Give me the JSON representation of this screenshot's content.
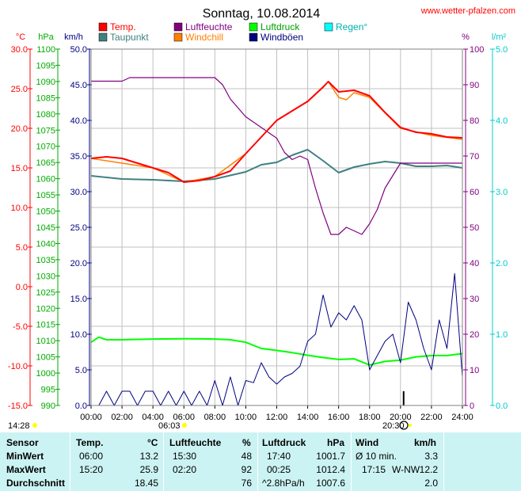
{
  "site": "www.wetter-pfalzen.com",
  "chart_data": {
    "type": "line",
    "title": "Sonntag, 10.08.2014",
    "x_ticks": [
      "00:00",
      "02:00",
      "04:00",
      "06:00",
      "08:00",
      "10:00",
      "12:00",
      "14:00",
      "16:00",
      "18:00",
      "20:00",
      "22:00",
      "24:00"
    ],
    "xlim": [
      0,
      24
    ],
    "grid": true,
    "legend": {
      "placement": "top",
      "items": [
        {
          "name": "Temp.",
          "color": "#ff0000"
        },
        {
          "name": "Luftfeuchte",
          "color": "#800080"
        },
        {
          "name": "Luftdruck",
          "color": "#00ff00"
        },
        {
          "name": "Regen°",
          "color": "#00ffff"
        },
        {
          "name": "Taupunkt",
          "color": "#408080"
        },
        {
          "name": "Windchill",
          "color": "#ff8000"
        },
        {
          "name": "Windböen",
          "color": "#000080"
        }
      ]
    },
    "axes": [
      {
        "id": "temp",
        "unit": "°C",
        "color": "#ff0000",
        "ylim": [
          -15,
          30
        ],
        "ticks": [
          "30.0",
          "25.0",
          "20.0",
          "15.0",
          "10.0",
          "5.0",
          "0.0",
          "-5.0",
          "-10.0",
          "-15.0"
        ]
      },
      {
        "id": "press",
        "unit": "hPa",
        "color": "#00aa00",
        "ylim": [
          990,
          1100
        ],
        "ticks": [
          "1100",
          "1095",
          "1090",
          "1085",
          "1080",
          "1075",
          "1070",
          "1065",
          "1060",
          "1055",
          "1050",
          "1045",
          "1040",
          "1035",
          "1030",
          "1025",
          "1020",
          "1015",
          "1010",
          "1005",
          "1000",
          "995",
          "990"
        ]
      },
      {
        "id": "wind",
        "unit": "km/h",
        "color": "#000080",
        "ylim": [
          0,
          50
        ],
        "ticks": [
          "50.0",
          "45.0",
          "40.0",
          "35.0",
          "30.0",
          "25.0",
          "20.0",
          "15.0",
          "10.0",
          "5.0",
          "0.0"
        ]
      },
      {
        "id": "hum",
        "unit": "%",
        "color": "#800080",
        "ylim": [
          0,
          100
        ],
        "ticks": [
          "100",
          "90",
          "80",
          "70",
          "60",
          "50",
          "40",
          "30",
          "20",
          "10",
          "0"
        ]
      },
      {
        "id": "rain",
        "unit": "l/m²",
        "color": "#00cccc",
        "ylim": [
          0,
          5
        ],
        "ticks": [
          "5.0",
          "4.0",
          "3.0",
          "2.0",
          "1.0",
          "0.0"
        ]
      }
    ],
    "series": [
      {
        "name": "Temp.",
        "axis": "temp",
        "color": "#ff0000",
        "x": [
          0,
          1,
          2,
          3,
          4,
          5,
          6,
          7,
          8,
          9,
          10,
          11,
          12,
          13,
          14,
          15,
          15.33,
          16,
          17,
          18,
          19,
          20,
          21,
          22,
          23,
          24
        ],
        "y": [
          16.2,
          16.4,
          16.2,
          15.6,
          15.0,
          14.4,
          13.2,
          13.4,
          13.9,
          14.6,
          16.8,
          18.9,
          21.0,
          22.2,
          23.4,
          25.2,
          25.9,
          24.6,
          24.8,
          24.1,
          22.0,
          20.1,
          19.5,
          19.3,
          18.9,
          18.8
        ]
      },
      {
        "name": "Windchill",
        "axis": "temp",
        "color": "#ff8000",
        "x": [
          0,
          4,
          6,
          8,
          10,
          12,
          14,
          15.33,
          16,
          16.5,
          17,
          18,
          20,
          22,
          24
        ],
        "y": [
          16.2,
          15.0,
          13.2,
          13.9,
          16.8,
          21.0,
          23.4,
          25.9,
          23.9,
          23.6,
          24.5,
          23.9,
          20.0,
          19.1,
          18.6
        ]
      },
      {
        "name": "Taupunkt",
        "axis": "temp",
        "color": "#408080",
        "x": [
          0,
          2,
          4,
          6,
          8,
          10,
          11,
          12,
          13,
          14,
          15,
          16,
          17,
          18,
          19,
          20,
          21,
          22,
          23,
          24
        ],
        "y": [
          14.0,
          13.6,
          13.5,
          13.3,
          13.6,
          14.5,
          15.4,
          15.7,
          16.6,
          17.3,
          15.9,
          14.4,
          15.1,
          15.5,
          15.8,
          15.6,
          15.2,
          15.2,
          15.3,
          15.0
        ]
      },
      {
        "name": "Luftfeuchte",
        "axis": "hum",
        "color": "#800080",
        "x": [
          0,
          1,
          2,
          2.5,
          3,
          4,
          5,
          6,
          7,
          8,
          8.5,
          9,
          10,
          11,
          12,
          12.5,
          13,
          13.5,
          14,
          14.5,
          15,
          15.5,
          16,
          16.5,
          17,
          17.5,
          18,
          18.5,
          19,
          20,
          21,
          22,
          23,
          24
        ],
        "y": [
          91,
          91,
          91,
          92,
          92,
          92,
          92,
          92,
          92,
          92,
          90,
          86,
          81,
          78,
          75,
          71,
          69,
          70,
          69,
          61,
          54,
          48,
          48,
          50,
          49,
          48,
          51,
          55,
          61,
          68,
          68,
          68,
          68,
          68
        ]
      },
      {
        "name": "Luftdruck",
        "axis": "press",
        "color": "#00ff00",
        "x": [
          0,
          0.5,
          1,
          2,
          4,
          6,
          8,
          9,
          10,
          11,
          12,
          13,
          14,
          15,
          16,
          17,
          18,
          19,
          20,
          21,
          22,
          23,
          24
        ],
        "y": [
          1009.5,
          1011.1,
          1010.3,
          1010.3,
          1010.5,
          1010.6,
          1010.5,
          1010.3,
          1009.5,
          1007.6,
          1007.0,
          1006.3,
          1005.5,
          1004.8,
          1004.2,
          1004.4,
          1002.5,
          1003.6,
          1004.0,
          1005.0,
          1005.4,
          1005.4,
          1006.0
        ]
      },
      {
        "name": "Windböen",
        "axis": "wind",
        "color": "#000080",
        "x": [
          0,
          0.5,
          1,
          1.5,
          2,
          2.5,
          3,
          3.5,
          4,
          4.5,
          5,
          5.5,
          6,
          6.5,
          7,
          7.5,
          8,
          8.5,
          9,
          9.5,
          10,
          10.5,
          11,
          11.5,
          12,
          12.5,
          13,
          13.5,
          14,
          14.5,
          15,
          15.5,
          16,
          16.5,
          17,
          17.5,
          18,
          18.5,
          19,
          19.5,
          20,
          20.5,
          21,
          21.5,
          22,
          22.5,
          23,
          23.5,
          24
        ],
        "y": [
          0,
          0,
          2,
          0,
          2,
          2,
          0,
          2,
          2,
          0,
          2,
          0,
          2,
          0,
          2,
          0,
          3.5,
          0,
          4,
          0,
          3.5,
          3.2,
          6,
          4,
          3,
          4,
          4.5,
          5.5,
          9,
          10,
          15.5,
          11,
          13,
          12,
          14,
          12,
          5,
          7,
          9,
          10,
          6,
          14.5,
          12,
          8,
          5,
          12,
          8,
          18.5,
          4
        ]
      }
    ],
    "rain_bar": {
      "x": 20.2,
      "value": 0.2
    }
  },
  "footer_times": {
    "t1": "14:28",
    "t2": "06:03",
    "t3": "20:30"
  },
  "table": {
    "headers": {
      "sensor": "Sensor",
      "temp": "Temp.",
      "temp_unit": "°C",
      "hum": "Luftfeuchte",
      "hum_unit": "%",
      "press": "Luftdruck",
      "press_unit": "hPa",
      "wind": "Wind",
      "wind_unit": "km/h"
    },
    "min": {
      "label": "MinWert",
      "temp_time": "06:00",
      "temp": "13.2",
      "hum_time": "15:30",
      "hum": "48",
      "press_time": "17:40",
      "press": "1001.7",
      "wind_label": "Ø 10 min.",
      "wind": "3.3"
    },
    "max": {
      "label": "MaxWert",
      "temp_time": "15:20",
      "temp": "25.9",
      "hum_time": "02:20",
      "hum": "92",
      "press_time": "00:25",
      "press": "1012.4",
      "wind_label": "17:15",
      "wind_dir": "W-NW",
      "wind": "12.2"
    },
    "avg": {
      "label": "Durchschnitt",
      "temp": "18.45",
      "hum": "76",
      "press_trend": "^2.8hPa/h",
      "press": "1007.6",
      "wind": "2.0"
    }
  }
}
